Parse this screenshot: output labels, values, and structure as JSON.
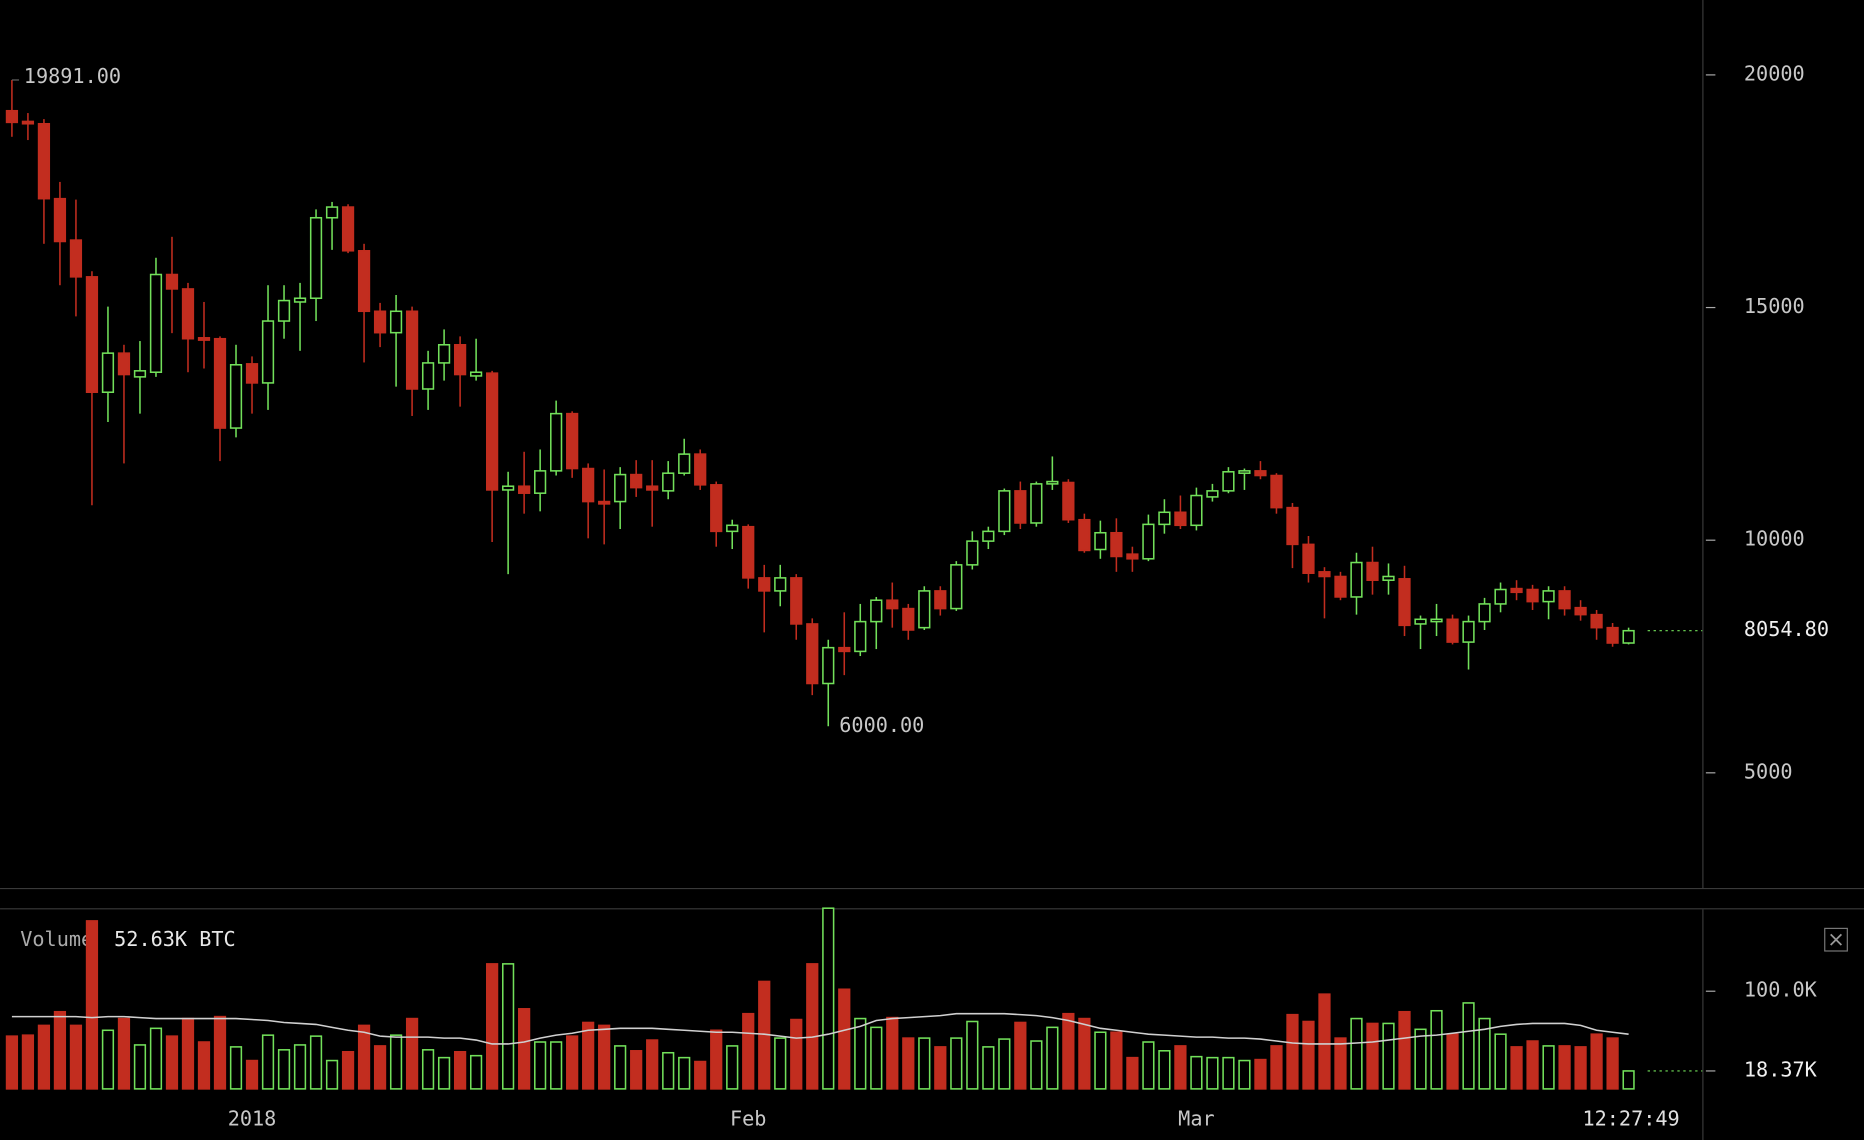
{
  "chart_data": {
    "type": "candlestick",
    "categories": [
      null,
      null,
      null,
      null,
      null,
      null,
      null,
      null,
      null,
      null,
      null,
      null,
      null,
      null,
      null,
      "2018",
      null,
      null,
      null,
      null,
      null,
      null,
      null,
      null,
      null,
      null,
      null,
      null,
      null,
      null,
      null,
      null,
      null,
      null,
      null,
      null,
      null,
      null,
      null,
      null,
      null,
      null,
      null,
      null,
      null,
      null,
      "Feb",
      null,
      null,
      null,
      null,
      null,
      null,
      null,
      null,
      null,
      null,
      null,
      null,
      null,
      null,
      null,
      null,
      null,
      null,
      null,
      null,
      null,
      null,
      null,
      null,
      null,
      null,
      null,
      "Mar",
      null,
      null,
      null,
      null,
      null,
      null,
      null,
      null,
      null,
      null,
      null,
      null,
      null,
      null,
      null,
      null,
      null,
      null,
      null,
      null,
      null,
      null,
      null,
      null,
      null,
      null,
      null
    ],
    "open": [
      19230,
      19000,
      18950,
      17340,
      16450,
      15660,
      13180,
      14020,
      13510,
      13610,
      15710,
      15400,
      14350,
      14330,
      12410,
      13790,
      13380,
      14710,
      15120,
      15200,
      16930,
      17160,
      16220,
      14920,
      14460,
      14920,
      13250,
      13810,
      14200,
      13530,
      13590,
      11080,
      11160,
      11010,
      11490,
      12720,
      11540,
      10830,
      10830,
      11410,
      11160,
      11060,
      11440,
      11850,
      11190,
      10190,
      10290,
      9190,
      8910,
      9190,
      8200,
      6920,
      7690,
      7610,
      8250,
      8710,
      8530,
      8120,
      8910,
      8530,
      9470,
      9980,
      10190,
      11060,
      10370,
      11210,
      11240,
      10440,
      9800,
      10160,
      9700,
      9600,
      10340,
      10600,
      10320,
      10930,
      11060,
      11440,
      11490,
      11390,
      10700,
      9910,
      9320,
      9220,
      8780,
      9520,
      9140,
      9170,
      8200,
      8250,
      8300,
      7810,
      8250,
      8630,
      8960,
      8940,
      8680,
      8910,
      8550,
      8400,
      8120,
      7790
    ],
    "high": [
      19891,
      19180,
      19050,
      17700,
      17320,
      15780,
      15020,
      14200,
      14280,
      16070,
      16520,
      15530,
      15120,
      14380,
      14200,
      13950,
      15480,
      15480,
      15530,
      17110,
      17270,
      17220,
      16370,
      15100,
      15270,
      15020,
      14070,
      14530,
      14380,
      14330,
      13640,
      11470,
      11900,
      11950,
      13000,
      12770,
      11650,
      11520,
      11570,
      11720,
      11720,
      11700,
      12180,
      11950,
      11260,
      10440,
      10340,
      9470,
      9470,
      9270,
      8320,
      7860,
      8450,
      8630,
      8780,
      9090,
      8630,
      9010,
      9010,
      9550,
      10190,
      10290,
      11110,
      11260,
      11260,
      11800,
      11310,
      10570,
      10420,
      10470,
      9860,
      10550,
      10880,
      10960,
      11130,
      11210,
      11570,
      11540,
      11700,
      11440,
      10800,
      10090,
      9420,
      9320,
      9730,
      9860,
      9500,
      9450,
      8380,
      8630,
      8400,
      8380,
      8760,
      9090,
      9140,
      9040,
      9010,
      9010,
      8710,
      8500,
      8220,
      8120
    ],
    "low": [
      18670,
      18600,
      16370,
      15480,
      14810,
      10750,
      12540,
      11650,
      12720,
      13510,
      14450,
      13610,
      13690,
      11700,
      12210,
      12720,
      12800,
      14330,
      14070,
      14710,
      16240,
      16170,
      13820,
      14150,
      13300,
      12670,
      12800,
      13430,
      12870,
      13430,
      9960,
      9270,
      10570,
      10620,
      11390,
      11340,
      10040,
      9910,
      10240,
      10930,
      10290,
      10880,
      11390,
      11080,
      9860,
      9810,
      8960,
      8020,
      8580,
      7860,
      6670,
      6000,
      7100,
      7510,
      7660,
      8120,
      7860,
      8070,
      8380,
      8480,
      9370,
      9810,
      10110,
      10240,
      10290,
      11080,
      10370,
      9730,
      9600,
      9320,
      9320,
      9550,
      10140,
      10240,
      10210,
      10830,
      11010,
      11080,
      11310,
      10570,
      9400,
      9090,
      8320,
      8710,
      8400,
      8830,
      8830,
      7940,
      7660,
      7940,
      7760,
      7220,
      8070,
      8450,
      8710,
      8500,
      8300,
      8380,
      8270,
      7860,
      7710,
      7760
    ],
    "close": [
      18980,
      18950,
      17340,
      16420,
      15660,
      13180,
      14020,
      13560,
      13640,
      15710,
      15400,
      14330,
      14300,
      12410,
      13770,
      13380,
      14710,
      15150,
      15200,
      16930,
      17160,
      16220,
      14920,
      14460,
      14920,
      13250,
      13810,
      14200,
      13560,
      13610,
      11080,
      11160,
      11010,
      11490,
      12720,
      11540,
      10830,
      10780,
      11410,
      11130,
      11080,
      11440,
      11850,
      11190,
      10190,
      10320,
      9190,
      8910,
      9190,
      8200,
      6920,
      7690,
      7610,
      8250,
      8710,
      8530,
      8070,
      8910,
      8530,
      9470,
      9980,
      10190,
      11060,
      10370,
      11210,
      11260,
      10440,
      9780,
      10160,
      9650,
      9600,
      10340,
      10600,
      10320,
      10960,
      11060,
      11470,
      11490,
      11390,
      10700,
      9910,
      9290,
      9220,
      8780,
      9520,
      9140,
      9220,
      8170,
      8300,
      8300,
      7810,
      8250,
      8630,
      8940,
      8880,
      8680,
      8910,
      8530,
      8400,
      8120,
      7790,
      8054.8
    ],
    "up_color": "#72e05a",
    "down_color": "#c22d1f",
    "ylim": [
      2525,
      21610
    ],
    "yticks": [
      5000,
      10000,
      15000,
      20000
    ],
    "high_label": {
      "value": 19891,
      "label": "19891.00"
    },
    "low_label": {
      "value": 6000,
      "label": "6000.00"
    },
    "last_price": {
      "value": 8054.8,
      "label": "8054.80"
    },
    "volume": {
      "type": "bar",
      "title": "Volume",
      "readout": "52.63K BTC",
      "values": [
        54000,
        55000,
        65000,
        79000,
        65000,
        172000,
        60000,
        72000,
        45000,
        62000,
        54000,
        72000,
        48000,
        74000,
        43000,
        29000,
        55000,
        40000,
        45000,
        54000,
        29000,
        38000,
        65000,
        44000,
        55000,
        72000,
        40000,
        32000,
        38000,
        34000,
        128000,
        128000,
        82000,
        48000,
        48000,
        54000,
        68000,
        65000,
        44000,
        39000,
        50000,
        37000,
        32000,
        28000,
        60000,
        44000,
        77000,
        110000,
        52000,
        71000,
        128000,
        185000,
        102000,
        72000,
        63000,
        73000,
        52000,
        52000,
        43000,
        52000,
        69000,
        43000,
        51000,
        68000,
        49000,
        63000,
        77000,
        72000,
        58000,
        58000,
        32000,
        48000,
        39000,
        44000,
        33000,
        32000,
        32000,
        29000,
        30000,
        44000,
        76000,
        69000,
        97000,
        52000,
        72000,
        67000,
        67000,
        79000,
        61000,
        80000,
        56000,
        88000,
        72000,
        56000,
        43000,
        49000,
        44000,
        44000,
        43000,
        56000,
        52000,
        18370
      ],
      "ma": [
        74000,
        74000,
        74000,
        74000,
        74000,
        73000,
        74000,
        74000,
        73000,
        72000,
        72000,
        72000,
        72000,
        72000,
        72000,
        71000,
        70000,
        68000,
        67000,
        66000,
        63000,
        60000,
        58000,
        54000,
        53000,
        53000,
        53000,
        52000,
        52000,
        50000,
        46000,
        46000,
        48000,
        52000,
        55000,
        57000,
        60000,
        61000,
        62000,
        62000,
        62000,
        61000,
        60000,
        59000,
        58000,
        58000,
        57000,
        56000,
        54000,
        52000,
        53000,
        56000,
        60000,
        64000,
        70000,
        72000,
        73000,
        74000,
        75000,
        77000,
        77000,
        77000,
        77000,
        76000,
        75000,
        73000,
        70000,
        66000,
        62000,
        60000,
        58000,
        56000,
        55000,
        54000,
        53000,
        53000,
        52000,
        52000,
        51000,
        49000,
        47000,
        46000,
        46000,
        46000,
        47000,
        48000,
        50000,
        52000,
        54000,
        55000,
        57000,
        59000,
        61000,
        64000,
        66000,
        67000,
        67000,
        67000,
        65000,
        60000,
        58000,
        56000
      ],
      "ma_color": "#d0d0d0",
      "ylim": [
        0,
        185000
      ],
      "yticks": [
        {
          "value": 100000,
          "label": "100.0K"
        }
      ],
      "last": {
        "value": 18370,
        "label": "18.37K"
      }
    },
    "time": "12:27:49"
  }
}
